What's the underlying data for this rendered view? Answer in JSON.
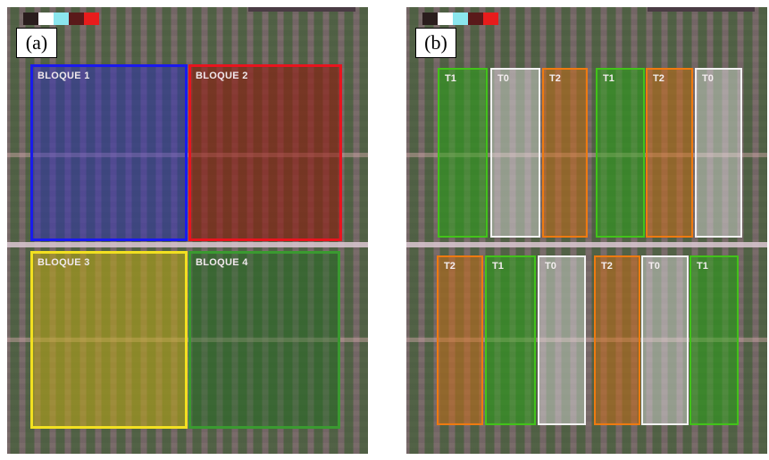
{
  "panel_a": {
    "label": "(a)",
    "blocks": [
      {
        "id": "b1",
        "label": "BLOQUE 1",
        "border": "#1a1aee",
        "fill": "rgba(40,40,200,0.45)"
      },
      {
        "id": "b2",
        "label": "BLOQUE 2",
        "border": "#e8141e",
        "fill": "rgba(150,20,10,0.55)"
      },
      {
        "id": "b3",
        "label": "BLOQUE 3",
        "border": "#f2e020",
        "fill": "rgba(190,170,20,0.55)"
      },
      {
        "id": "b4",
        "label": "BLOQUE 4",
        "border": "#3a9a30",
        "fill": "rgba(30,110,30,0.45)"
      }
    ]
  },
  "panel_b": {
    "label": "(b)",
    "strips": [
      {
        "label": "T1",
        "border": "#42c21a",
        "fill": "rgba(40,170,20,0.5)"
      },
      {
        "label": "T0",
        "border": "#f2f2f2",
        "fill": "rgba(230,230,230,0.45)"
      },
      {
        "label": "T2",
        "border": "#ee7a10",
        "fill": "rgba(210,110,20,0.5)"
      },
      {
        "label": "T1",
        "border": "#42c21a",
        "fill": "rgba(40,170,20,0.5)"
      },
      {
        "label": "T2",
        "border": "#ee7a10",
        "fill": "rgba(210,110,20,0.5)"
      },
      {
        "label": "T0",
        "border": "#f2f2f2",
        "fill": "rgba(230,230,230,0.45)"
      },
      {
        "label": "T2",
        "border": "#ee7a10",
        "fill": "rgba(210,110,20,0.5)"
      },
      {
        "label": "T1",
        "border": "#42c21a",
        "fill": "rgba(40,170,20,0.5)"
      },
      {
        "label": "T0",
        "border": "#f2f2f2",
        "fill": "rgba(230,230,230,0.45)"
      },
      {
        "label": "T2",
        "border": "#ee7a10",
        "fill": "rgba(210,110,20,0.5)"
      },
      {
        "label": "T0",
        "border": "#f2f2f2",
        "fill": "rgba(230,230,230,0.45)"
      },
      {
        "label": "T1",
        "border": "#42c21a",
        "fill": "rgba(40,170,20,0.5)"
      }
    ]
  },
  "legend_colors": [
    "#2a1d1d",
    "#ffffff",
    "#8be6ee",
    "#5a1a1a",
    "#e81c1c"
  ]
}
